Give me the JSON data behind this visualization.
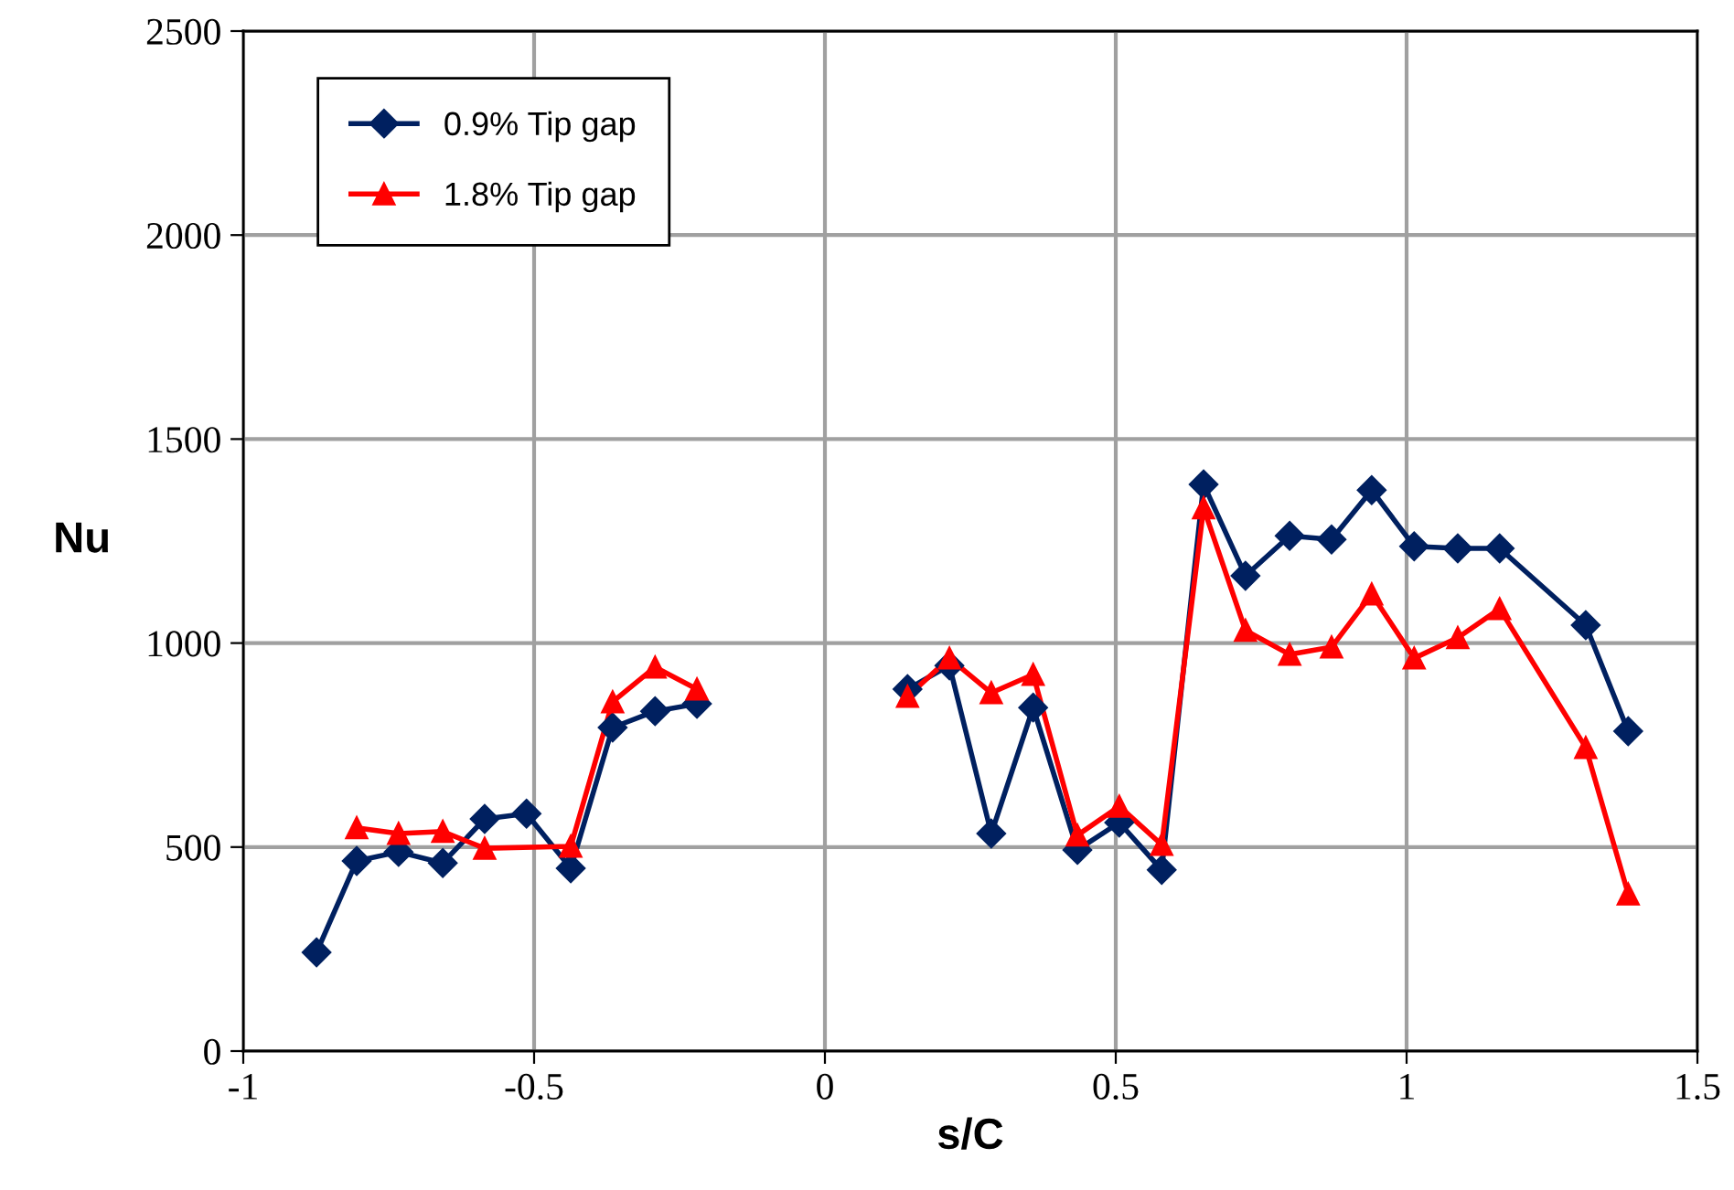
{
  "chart_data": {
    "type": "line",
    "xlabel": "s/C",
    "ylabel": "Nu",
    "xlim": [
      -1,
      1.5
    ],
    "xticks": [
      -1,
      -0.5,
      0,
      0.5,
      1,
      1.5
    ],
    "ylim": [
      0,
      2500
    ],
    "yticks": [
      0,
      500,
      1000,
      1500,
      2000,
      2500
    ],
    "grid": true,
    "legend": "top left",
    "line_style": "solid",
    "series": [
      {
        "name": "0.9% Tip gap",
        "color": "#002060",
        "marker": "diamond",
        "x": [
          -0.874,
          -0.805,
          -0.733,
          -0.657,
          -0.585,
          -0.513,
          -0.437,
          -0.365,
          -0.292,
          -0.22,
          0,
          0.142,
          0.214,
          0.286,
          0.358,
          0.434,
          0.506,
          0.579,
          0.651,
          0.723,
          0.799,
          0.871,
          0.94,
          1.013,
          1.088,
          1.16,
          1.308,
          1.381
        ],
        "values": [
          242,
          466,
          488,
          461,
          569,
          582,
          448,
          793,
          833,
          851,
          null,
          887,
          945,
          533,
          842,
          493,
          560,
          444,
          1389,
          1165,
          1263,
          1254,
          1375,
          1237,
          1232,
          1232,
          1044,
          784
        ]
      },
      {
        "name": "1.8% Tip gap",
        "color": "#ff0000",
        "marker": "triangle",
        "x": [
          -0.805,
          -0.733,
          -0.657,
          -0.585,
          -0.437,
          -0.365,
          -0.292,
          -0.22,
          0,
          0.142,
          0.214,
          0.286,
          0.358,
          0.434,
          0.506,
          0.579,
          0.651,
          0.723,
          0.799,
          0.871,
          0.94,
          1.013,
          1.088,
          1.16,
          1.308,
          1.381
        ],
        "values": [
          547,
          533,
          538,
          497,
          502,
          856,
          941,
          887,
          null,
          869,
          963,
          878,
          923,
          529,
          600,
          506,
          1331,
          1031,
          972,
          990,
          1120,
          963,
          1013,
          1084,
          744,
          385
        ]
      }
    ]
  }
}
